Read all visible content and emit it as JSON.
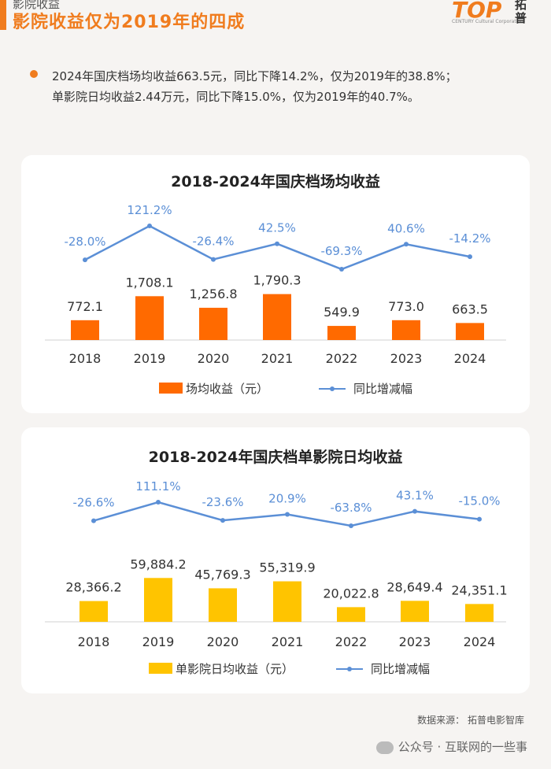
{
  "header": {
    "section_tag": "影院收益",
    "title": "影院收益仅为2019年的四成",
    "logo_mark": "TOP",
    "logo_sub": "CENTURY Cultural Corporation",
    "logo_name": "拓普"
  },
  "summary": {
    "line1": "2024年国庆档场均收益663.5元，同比下降14.2%，仅为2019年的38.8%；",
    "line2": "单影院日均收益2.44万元，同比下降15.0%，仅为2019年的40.7%。"
  },
  "chart_data": [
    {
      "type": "bar",
      "title": "2018-2024年国庆档场均收益",
      "categories": [
        "2018",
        "2019",
        "2020",
        "2021",
        "2022",
        "2023",
        "2024"
      ],
      "series": [
        {
          "name": "场均收益（元）",
          "type": "bar",
          "color": "#ff6a00",
          "values": [
            772.1,
            1708.1,
            1256.8,
            1790.3,
            549.9,
            773.0,
            663.5
          ],
          "labels": [
            "772.1",
            "1,708.1",
            "1,256.8",
            "1,790.3",
            "549.9",
            "773.0",
            "663.5"
          ]
        },
        {
          "name": "同比增减幅",
          "type": "line",
          "color": "#5b8fd6",
          "values": [
            -28.0,
            121.2,
            -26.4,
            42.5,
            -69.3,
            40.6,
            -14.2
          ],
          "labels": [
            "-28.0%",
            "121.2%",
            "-26.4%",
            "42.5%",
            "-69.3%",
            "40.6%",
            "-14.2%"
          ]
        }
      ],
      "legend_position": "bottom",
      "grid": false
    },
    {
      "type": "bar",
      "title": "2018-2024年国庆档单影院日均收益",
      "categories": [
        "2018",
        "2019",
        "2020",
        "2021",
        "2022",
        "2023",
        "2024"
      ],
      "series": [
        {
          "name": "单影院日均收益（元）",
          "type": "bar",
          "color": "#ffc400",
          "values": [
            28366.2,
            59884.2,
            45769.3,
            55319.9,
            20022.8,
            28649.4,
            24351.1
          ],
          "labels": [
            "28,366.2",
            "59,884.2",
            "45,769.3",
            "55,319.9",
            "20,022.8",
            "28,649.4",
            "24,351.1"
          ]
        },
        {
          "name": "同比增减幅",
          "type": "line",
          "color": "#5b8fd6",
          "values": [
            -26.6,
            111.1,
            -23.6,
            20.9,
            -63.8,
            43.1,
            -15.0
          ],
          "labels": [
            "-26.6%",
            "111.1%",
            "-23.6%",
            "20.9%",
            "-63.8%",
            "43.1%",
            "-15.0%"
          ]
        }
      ],
      "legend_position": "bottom",
      "grid": false
    }
  ],
  "footer": {
    "source": "数据来源：  拓普电影智库",
    "account": "公众号 · 互联网的一些事"
  }
}
